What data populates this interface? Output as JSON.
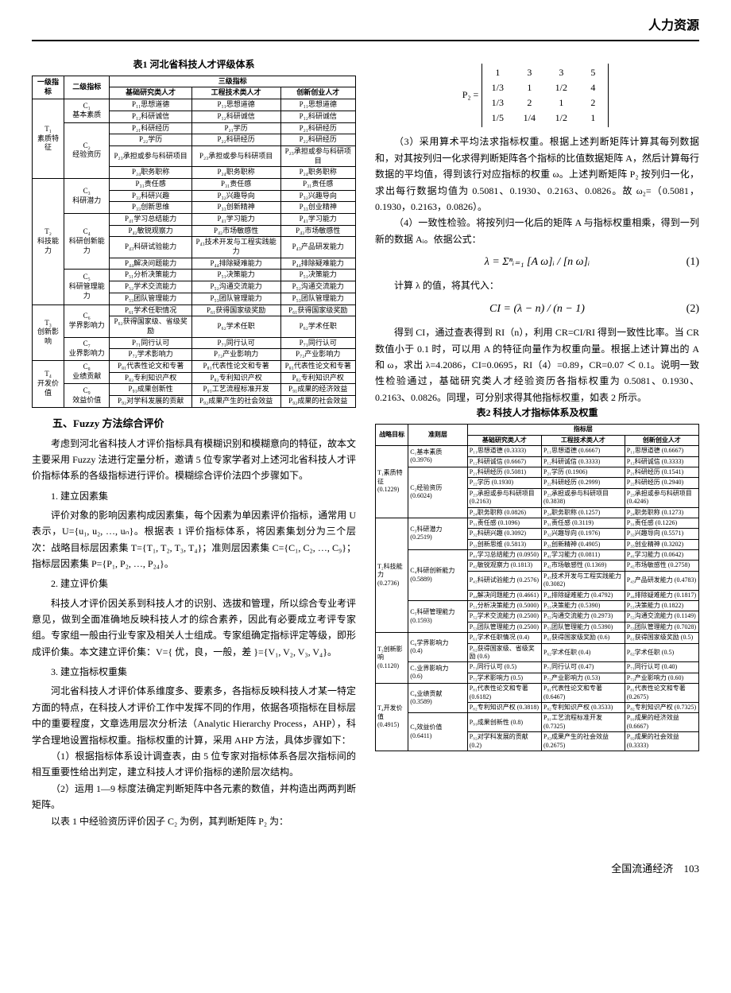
{
  "header": {
    "category": "人力资源"
  },
  "table1": {
    "caption": "表1  河北省科技人才评级体系",
    "header": {
      "l1": "一级指标",
      "l2": "二级指标",
      "l3": "三级指标",
      "c1": "基础研究类人才",
      "c2": "工程技术类人才",
      "c3": "创新创业人才"
    },
    "groups": [
      {
        "l1": "T₁\n素质特征",
        "subs": [
          {
            "l2": "C₁\n基本素质",
            "rows": [
              [
                "P₁₁思想道德",
                "P₁₁思想道德",
                "P₁₁思想道德"
              ],
              [
                "P₁₂科研诚信",
                "P₁₂科研诚信",
                "P₁₂科研诚信"
              ]
            ]
          },
          {
            "l2": "C₂\n经验资历",
            "rows": [
              [
                "P₂₁科研经历",
                "P₂₁学历",
                "P₂₁科研经历"
              ],
              [
                "P₂₂学历",
                "P₂₂科研经历",
                "P₂₂科研经历"
              ],
              [
                "P₂₃承担或参与科研项目",
                "P₂₃承担或参与科研项目",
                "P₂₃承担或参与科研项目"
              ],
              [
                "P₂₄职务职称",
                "P₂₄职务职称",
                "P₂₄职务职称"
              ]
            ]
          }
        ]
      },
      {
        "l1": "T₂\n科技能力",
        "subs": [
          {
            "l2": "C₃\n科研潜力",
            "rows": [
              [
                "P₃₁责任感",
                "P₃₁责任感",
                "P₃₁责任感"
              ],
              [
                "P₃₂科研兴趣",
                "P₃₂兴趣导向",
                "P₃₂兴趣导向"
              ],
              [
                "P₃₃创新思维",
                "P₃₃创新精神",
                "P₃₃创业精神"
              ]
            ]
          },
          {
            "l2": "C₄\n科研创新能力",
            "rows": [
              [
                "P₄₁学习总结能力",
                "P₄₁学习能力",
                "P₄₁学习能力"
              ],
              [
                "P₄₂敏锐观察力",
                "P₄₂市场敏感性",
                "P₄₂市场敏感性"
              ],
              [
                "P₄₃科研试验能力",
                "P₄₃技术开发与工程实践能力",
                "P₄₃产品研发能力"
              ],
              [
                "P₄₄解决问题能力",
                "P₄₄排除疑难能力",
                "P₄₄排除疑难能力"
              ]
            ]
          },
          {
            "l2": "C₅\n科研管理能力",
            "rows": [
              [
                "P₅₁分析决策能力",
                "P₅₁决策能力",
                "P₅₁决策能力"
              ],
              [
                "P₅₂学术交流能力",
                "P₅₂沟通交流能力",
                "P₅₂沟通交流能力"
              ],
              [
                "P₅₃团队管理能力",
                "P₅₃团队管理能力",
                "P₅₃团队管理能力"
              ]
            ]
          }
        ]
      },
      {
        "l1": "T₃\n创新影响",
        "subs": [
          {
            "l2": "C₆\n学界影响力",
            "rows": [
              [
                "P₆₁学术任职情况",
                "P₆₁获得国家级奖励",
                "P₆₁获得国家级奖励"
              ],
              [
                "P₆₂获得国家级、省级奖励",
                "P₆₂学术任职",
                "P₆₂学术任职"
              ]
            ]
          },
          {
            "l2": "C₇\n业界影响力",
            "rows": [
              [
                "P₇₁同行认可",
                "P₇₁同行认可",
                "P₇₁同行认可"
              ],
              [
                "P₇₂学术影响力",
                "P₇₂产业影响力",
                "P₇₂产业影响力"
              ]
            ]
          }
        ]
      },
      {
        "l1": "T₄\n开发价值",
        "subs": [
          {
            "l2": "C₈\n业绩贡献",
            "rows": [
              [
                "P₈₁代表性论文和专著",
                "P₈₁代表性论文和专著",
                "P₈₁代表性论文和专著"
              ],
              [
                "P₈₂专利知识产权",
                "P₈₂专利知识产权",
                "P₈₂专利知识产权"
              ]
            ]
          },
          {
            "l2": "C₉\n效益价值",
            "rows": [
              [
                "P₉₁成果创新性",
                "P₉₁工艺流程标准开发",
                "P₉₁成果的经济效益"
              ],
              [
                "P₉₂对学科发展的贡献",
                "P₉₂成果产生的社会效益",
                "P₉₂成果的社会效益"
              ]
            ]
          }
        ]
      }
    ]
  },
  "section5": {
    "title": "五、Fuzzy 方法综合评价",
    "p1": "考虑到河北省科技人才评价指标具有模糊识别和模糊意向的特征，故本文主要采用 Fuzzy 法进行定量分析，邀请 5 位专家学者对上述河北省科技人才评价指标体系的各级指标进行评价。模糊综合评价法四个步骤如下。",
    "s1t": "1. 建立因素集",
    "s1p": "评价对象的影响因素构成因素集，每个因素为单因素评价指标，通常用 U 表示，U={u₁, u₂, …, uₙ}。根据表 1 评价指标体系，将因素集划分为三个层次：战略目标层因素集 T={T₁, T₂, T₃, T₄}；准则层因素集 C={C₁, C₂, …, C₉}；指标层因素集 P={P₁, P₂, …, P₂₄}。",
    "s2t": "2. 建立评价集",
    "s2p": "科技人才评价因关系到科技人才的识别、选拔和管理，所以综合专业考评意见，做到全面准确地反映科技人才的综合素养，因此有必要成立考评专家组。专家组一般由行业专家及相关人士组成。专家组确定指标评定等级，即形成评价集。本文建立评价集：V={ 优，良，一般，差 }={V₁, V₂, V₃, V₄}。",
    "s3t": "3. 建立指标权重集",
    "s3p1": "河北省科技人才评价体系维度多、要素多，各指标反映科技人才某一特定方面的特点，在科技人才评价工作中发挥不同的作用，依据各项指标在目标层中的重要程度，文章选用层次分析法（Analytic Hierarchy Process，AHP），科学合理地设置指标权重。指标权重的计算，采用 AHP 方法，具体步骤如下：",
    "s3p2": "（1）根据指标体系设计调查表，由 5 位专家对指标体系各层次指标间的相互重要性给出判定，建立科技人才评价指标的递阶层次结构。",
    "s3p3": "（2）运用 1—9 标度法确定判断矩阵中各元素的数值，并构造出两两判断矩阵。",
    "s3p4": "以表 1 中经验资历评价因子 C₂ 为例，其判断矩阵 P₂ 为："
  },
  "matrixP2": {
    "label": "P₂ =",
    "rows": [
      [
        "1",
        "3",
        "3",
        "5"
      ],
      [
        "1/3",
        "1",
        "1/2",
        "4"
      ],
      [
        "1/3",
        "2",
        "1",
        "2"
      ],
      [
        "1/5",
        "1/4",
        "1/2",
        "1"
      ]
    ]
  },
  "rightcol": {
    "p3": "（3）采用算术平均法求指标权重。根据上述判断矩阵计算其每列数据和，对其按列归一化求得判断矩阵各个指标的比值数据矩阵 A，然后计算每行数据的平均值，得到该行对应指标的权重 ω。上述判断矩阵 P₂ 按列归一化，求出每行数据均值为 0.5081、0.1930、0.2163、0.0826。故 ω₂=（0.5081，0.1930，0.2163，0.0826）。",
    "p4": "（4）一致性检验。将按列归一化后的矩阵 A 与指标权重相乘，得到一列新的数据 Aᵢ。依据公式：",
    "eq1": "λ = Σⁿᵢ₌₁ [A ω]ᵢ / [n ω]ᵢ",
    "eq1num": "(1)",
    "p4b": "计算 λ 的值，将其代入：",
    "eq2": "CI = (λ − n) / (n − 1)",
    "eq2num": "(2)",
    "p5": "得到 CI，通过查表得到 RI（n），利用 CR=CI/RI 得到一致性比率。当 CR 数值小于 0.1 时，可以用 A 的特征向量作为权重向量。根据上述计算出的 A 和 ω，求出 λ=4.2086，CI=0.0695，RI（4）=0.89，CR=0.07 ＜ 0.1。说明一致性检验通过，基础研究类人才经验资历各指标权重为 0.5081、0.1930、0.2163、0.0826。同理，可分别求得其他指标权重，如表 2 所示。"
  },
  "table2": {
    "caption": "表2  科技人才指标体系及权重",
    "header": {
      "h1": "战略目标",
      "h2": "准则层",
      "h3": "指标层",
      "c1": "基础研究类人才",
      "c2": "工程技术类人才",
      "c3": "创新创业人才"
    },
    "groups": [
      {
        "l1": "T₁素质特征\n(0.1229)",
        "subs": [
          {
            "l2": "C₁基本素质\n(0.3976)",
            "rows": [
              [
                "P₁₁思想道德 (0.3333)",
                "P₁₁思想道德 (0.6667)",
                "P₁₁思想道德 (0.6667)"
              ],
              [
                "P₁₂科研诚信 (0.6667)",
                "P₁₂科研诚信 (0.3333)",
                "P₁₂科研诚信 (0.3333)"
              ]
            ]
          },
          {
            "l2": "C₂经验资历\n(0.6024)",
            "rows": [
              [
                "P₂₁科研经历 (0.5081)",
                "P₂₁学历 (0.1906)",
                "P₂₁科研经历 (0.1541)"
              ],
              [
                "P₂₂学历 (0.1930)",
                "P₂₂科研经历 (0.2999)",
                "P₂₂科研经历 (0.2940)"
              ],
              [
                "P₂₃承担或参与科研项目 (0.2163)",
                "P₂₃承担或参与科研项目 (0.3838)",
                "P₂₃承担或参与科研项目 (0.4246)"
              ],
              [
                "P₂₄职务职称 (0.0826)",
                "P₂₄职务职称 (0.1257)",
                "P₂₄职务职称 (0.1273)"
              ]
            ]
          }
        ]
      },
      {
        "l1": "T₂科技能力\n(0.2736)",
        "subs": [
          {
            "l2": "C₃科研潜力\n(0.2519)",
            "rows": [
              [
                "P₃₁责任感 (0.1096)",
                "P₃₁责任感 (0.3119)",
                "P₃₁责任感 (0.1226)"
              ],
              [
                "P₃₂科研兴趣 (0.3092)",
                "P₃₂兴趣导向 (0.1976)",
                "P₃₂兴趣导向 (0.5571)"
              ],
              [
                "P₃₃创新思维 (0.5813)",
                "P₃₃创新精神 (0.4905)",
                "P₃₃创业精神 (0.3202)"
              ]
            ]
          },
          {
            "l2": "C₄科研创新能力 (0.5889)",
            "rows": [
              [
                "P₄₁学习总结能力 (0.0950)",
                "P₄₁学习能力 (0.0811)",
                "P₄₁学习能力 (0.0642)"
              ],
              [
                "P₄₂敏锐观察力 (0.1813)",
                "P₄₂市场敏感性 (0.1369)",
                "P₄₂市场敏感性 (0.2758)"
              ],
              [
                "P₄₃科研试验能力 (0.2576)",
                "P₄₃技术开发与工程实践能力 (0.3082)",
                "P₄₃产品研发能力 (0.4783)"
              ],
              [
                "P₄₄解决问题能力 (0.4661)",
                "P₄₄排除疑难能力 (0.4792)",
                "P₄₄排除疑难能力 (0.1817)"
              ]
            ]
          },
          {
            "l2": "C₅科研管理能力 (0.1593)",
            "rows": [
              [
                "P₅₁分析决策能力 (0.5000)",
                "P₅₁决策能力 (0.5390)",
                "P₅₁决策能力 (0.1822)"
              ],
              [
                "P₅₂学术交流能力 (0.2500)",
                "P₅₂沟通交流能力 (0.2973)",
                "P₅₂沟通交流能力 (0.1149)"
              ],
              [
                "P₅₃团队管理能力 (0.2500)",
                "P₅₃团队管理能力 (0.5390)",
                "P₅₃团队管理能力 (0.7028)"
              ]
            ]
          }
        ]
      },
      {
        "l1": "T₃创新影响\n(0.1120)",
        "subs": [
          {
            "l2": "C₆学界影响力\n(0.4)",
            "rows": [
              [
                "P₆₁学术任职情况 (0.4)",
                "P₆₁获得国家级奖励 (0.6)",
                "P₆₁获得国家级奖励 (0.5)"
              ],
              [
                "P₆₂获得国家级、省级奖励 (0.6)",
                "P₆₂学术任职 (0.4)",
                "P₆₂学术任职 (0.5)"
              ]
            ]
          },
          {
            "l2": "C₇业界影响力\n(0.6)",
            "rows": [
              [
                "P₇₁同行认可 (0.5)",
                "P₇₁同行认可 (0.47)",
                "P₇₁同行认可 (0.40)"
              ],
              [
                "P₇₂学术影响力 (0.5)",
                "P₇₂产业影响力 (0.53)",
                "P₇₂产业影响力 (0.60)"
              ]
            ]
          }
        ]
      },
      {
        "l1": "T₄开发价值\n(0.4915)",
        "subs": [
          {
            "l2": "C₈业绩贡献\n(0.3589)",
            "rows": [
              [
                "P₈₁代表性论文和专著 (0.6182)",
                "P₈₁代表性论文和专著 (0.6467)",
                "P₈₁代表性论文和专著 (0.2675)"
              ],
              [
                "P₈₂专利知识产权 (0.3818)",
                "P₈₂专利知识产权 (0.3533)",
                "P₈₂专利知识产权 (0.7325)"
              ]
            ]
          },
          {
            "l2": "C₉效益价值\n(0.6411)",
            "rows": [
              [
                "P₉₁成果创新性 (0.8)",
                "P₉₁工艺流程标准开发 (0.7325)",
                "P₉₁成果的经济效益 (0.6667)"
              ],
              [
                "P₉₂对学科发展的贡献 (0.2)",
                "P₉₂成果产生的社会效益 (0.2675)",
                "P₉₂成果的社会效益 (0.3333)"
              ]
            ]
          }
        ]
      }
    ]
  },
  "footer": {
    "journal": "全国流通经济",
    "page": "103"
  }
}
